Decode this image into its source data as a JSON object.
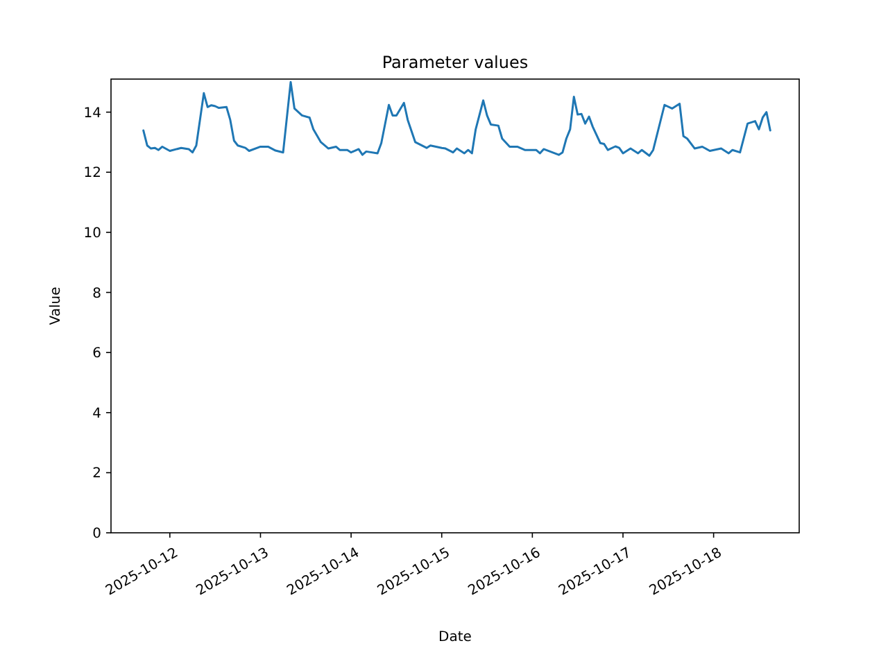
{
  "chart_data": {
    "type": "line",
    "title": "Parameter values",
    "xlabel": "Date",
    "ylabel": "Value",
    "x": [
      "2025-10-11T17:00",
      "2025-10-11T18:00",
      "2025-10-11T19:00",
      "2025-10-11T20:00",
      "2025-10-11T21:00",
      "2025-10-11T22:00",
      "2025-10-12T00:00",
      "2025-10-12T03:00",
      "2025-10-12T05:00",
      "2025-10-12T06:00",
      "2025-10-12T07:00",
      "2025-10-12T09:00",
      "2025-10-12T10:00",
      "2025-10-12T11:00",
      "2025-10-12T12:00",
      "2025-10-12T13:00",
      "2025-10-12T15:00",
      "2025-10-12T16:00",
      "2025-10-12T17:00",
      "2025-10-12T18:00",
      "2025-10-12T20:00",
      "2025-10-12T21:00",
      "2025-10-13T00:00",
      "2025-10-13T02:00",
      "2025-10-13T04:00",
      "2025-10-13T06:00",
      "2025-10-13T08:00",
      "2025-10-13T09:00",
      "2025-10-13T11:00",
      "2025-10-13T13:00",
      "2025-10-13T14:00",
      "2025-10-13T16:00",
      "2025-10-13T18:00",
      "2025-10-13T20:00",
      "2025-10-13T21:00",
      "2025-10-13T23:00",
      "2025-10-14T00:00",
      "2025-10-14T02:00",
      "2025-10-14T03:00",
      "2025-10-14T04:00",
      "2025-10-14T07:00",
      "2025-10-14T08:00",
      "2025-10-14T10:00",
      "2025-10-14T11:00",
      "2025-10-14T12:00",
      "2025-10-14T14:00",
      "2025-10-14T15:00",
      "2025-10-14T17:00",
      "2025-10-14T20:00",
      "2025-10-14T21:00",
      "2025-10-15T00:00",
      "2025-10-15T01:00",
      "2025-10-15T03:00",
      "2025-10-15T04:00",
      "2025-10-15T06:00",
      "2025-10-15T07:00",
      "2025-10-15T08:00",
      "2025-10-15T09:00",
      "2025-10-15T11:00",
      "2025-10-15T12:00",
      "2025-10-15T13:00",
      "2025-10-15T15:00",
      "2025-10-15T16:00",
      "2025-10-15T18:00",
      "2025-10-15T20:00",
      "2025-10-15T22:00",
      "2025-10-16T01:00",
      "2025-10-16T02:00",
      "2025-10-16T03:00",
      "2025-10-16T07:00",
      "2025-10-16T08:00",
      "2025-10-16T09:00",
      "2025-10-16T10:00",
      "2025-10-16T11:00",
      "2025-10-16T12:00",
      "2025-10-16T13:00",
      "2025-10-16T14:00",
      "2025-10-16T15:00",
      "2025-10-16T16:00",
      "2025-10-16T18:00",
      "2025-10-16T19:00",
      "2025-10-16T20:00",
      "2025-10-16T22:00",
      "2025-10-16T23:00",
      "2025-10-17T00:00",
      "2025-10-17T02:00",
      "2025-10-17T04:00",
      "2025-10-17T05:00",
      "2025-10-17T07:00",
      "2025-10-17T08:00",
      "2025-10-17T11:00",
      "2025-10-17T13:00",
      "2025-10-17T15:00",
      "2025-10-17T16:00",
      "2025-10-17T17:00",
      "2025-10-17T19:00",
      "2025-10-17T21:00",
      "2025-10-17T23:00",
      "2025-10-18T02:00",
      "2025-10-18T04:00",
      "2025-10-18T05:00",
      "2025-10-18T07:00",
      "2025-10-18T09:00",
      "2025-10-18T11:00",
      "2025-10-18T12:00",
      "2025-10-18T13:00",
      "2025-10-18T14:00",
      "2025-10-18T15:00"
    ],
    "series": [
      {
        "color": "#1f77b4",
        "values": [
          13.39,
          12.89,
          12.79,
          12.81,
          12.74,
          12.85,
          12.71,
          12.81,
          12.77,
          12.66,
          12.89,
          14.63,
          14.17,
          14.23,
          14.2,
          14.14,
          14.17,
          13.74,
          13.05,
          12.89,
          12.81,
          12.71,
          12.85,
          12.85,
          12.72,
          12.66,
          15.0,
          14.12,
          13.89,
          13.82,
          13.43,
          13.0,
          12.79,
          12.85,
          12.74,
          12.74,
          12.66,
          12.77,
          12.58,
          12.69,
          12.63,
          12.97,
          14.24,
          13.89,
          13.89,
          14.31,
          13.74,
          13.0,
          12.81,
          12.89,
          12.81,
          12.79,
          12.66,
          12.79,
          12.63,
          12.74,
          12.63,
          13.43,
          14.39,
          13.89,
          13.59,
          13.55,
          13.12,
          12.85,
          12.85,
          12.74,
          12.74,
          12.63,
          12.77,
          12.58,
          12.66,
          13.12,
          13.43,
          14.51,
          13.92,
          13.94,
          13.62,
          13.85,
          13.51,
          12.97,
          12.94,
          12.74,
          12.86,
          12.81,
          12.63,
          12.79,
          12.63,
          12.74,
          12.55,
          12.74,
          14.24,
          14.12,
          14.28,
          13.2,
          13.12,
          12.79,
          12.85,
          12.71,
          12.79,
          12.63,
          12.74,
          12.66,
          13.62,
          13.7,
          13.43,
          13.82,
          14.0,
          13.39
        ]
      }
    ],
    "xlim": [
      "2025-10-11T08:25",
      "2025-10-18T22:40"
    ],
    "xticks": [
      {
        "value": "2025-10-12",
        "label": "2025-10-12"
      },
      {
        "value": "2025-10-13",
        "label": "2025-10-13"
      },
      {
        "value": "2025-10-14",
        "label": "2025-10-14"
      },
      {
        "value": "2025-10-15",
        "label": "2025-10-15"
      },
      {
        "value": "2025-10-16",
        "label": "2025-10-16"
      },
      {
        "value": "2025-10-17",
        "label": "2025-10-17"
      },
      {
        "value": "2025-10-18",
        "label": "2025-10-18"
      }
    ],
    "ylim": [
      0,
      15.1
    ],
    "yticks": [
      0,
      2,
      4,
      6,
      8,
      10,
      12,
      14
    ],
    "grid": false,
    "marker": "none",
    "line_style": "solid"
  }
}
